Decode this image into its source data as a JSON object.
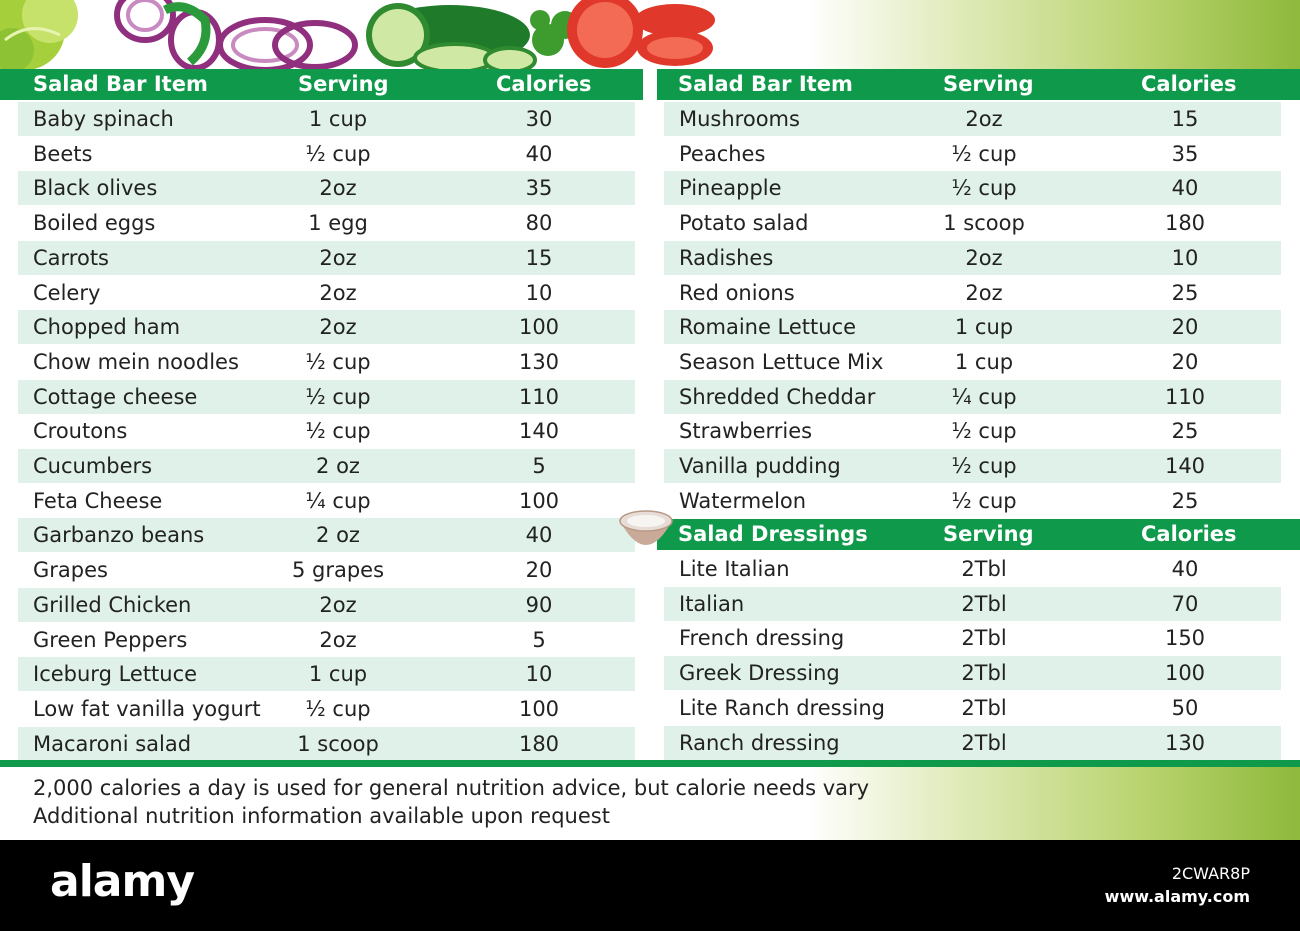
{
  "headers": {
    "item": "Salad Bar Item",
    "serving": "Serving",
    "calories": "Calories"
  },
  "dressing_headers": {
    "item": "Salad Dressings",
    "serving": "Serving",
    "calories": "Calories"
  },
  "left_items": [
    {
      "item": "Baby spinach",
      "serving": "1 cup",
      "calories": "30"
    },
    {
      "item": "Beets",
      "serving": "½ cup",
      "calories": "40"
    },
    {
      "item": "Black olives",
      "serving": "2oz",
      "calories": "35"
    },
    {
      "item": "Boiled eggs",
      "serving": "1 egg",
      "calories": "80"
    },
    {
      "item": "Carrots",
      "serving": "2oz",
      "calories": "15"
    },
    {
      "item": "Celery",
      "serving": "2oz",
      "calories": "10"
    },
    {
      "item": "Chopped ham",
      "serving": "2oz",
      "calories": "100"
    },
    {
      "item": "Chow mein noodles",
      "serving": "½ cup",
      "calories": "130"
    },
    {
      "item": "Cottage cheese",
      "serving": "½ cup",
      "calories": "110"
    },
    {
      "item": "Croutons",
      "serving": "½ cup",
      "calories": "140"
    },
    {
      "item": "Cucumbers",
      "serving": "2 oz",
      "calories": "5"
    },
    {
      "item": "Feta Cheese",
      "serving": "¼ cup",
      "calories": "100"
    },
    {
      "item": "Garbanzo beans",
      "serving": "2 oz",
      "calories": "40"
    },
    {
      "item": "Grapes",
      "serving": "5  grapes",
      "calories": "20"
    },
    {
      "item": "Grilled Chicken",
      "serving": "2oz",
      "calories": "90"
    },
    {
      "item": "Green Peppers",
      "serving": "2oz",
      "calories": "5"
    },
    {
      "item": "Iceburg Lettuce",
      "serving": "1 cup",
      "calories": "10"
    },
    {
      "item": "Low fat vanilla yogurt",
      "serving": "½ cup",
      "calories": "100"
    },
    {
      "item": "Macaroni salad",
      "serving": "1 scoop",
      "calories": "180"
    }
  ],
  "right_items": [
    {
      "item": "Mushrooms",
      "serving": "2oz",
      "calories": "15"
    },
    {
      "item": "Peaches",
      "serving": "½ cup",
      "calories": "35"
    },
    {
      "item": "Pineapple",
      "serving": "½ cup",
      "calories": "40"
    },
    {
      "item": "Potato salad",
      "serving": "1 scoop",
      "calories": "180"
    },
    {
      "item": "Radishes",
      "serving": "2oz",
      "calories": "10"
    },
    {
      "item": "Red onions",
      "serving": "2oz",
      "calories": "25"
    },
    {
      "item": "Romaine Lettuce",
      "serving": "1 cup",
      "calories": "20"
    },
    {
      "item": "Season Lettuce Mix",
      "serving": "1 cup",
      "calories": "20"
    },
    {
      "item": "Shredded Cheddar",
      "serving": "¼ cup",
      "calories": "110"
    },
    {
      "item": "Strawberries",
      "serving": "½ cup",
      "calories": "25"
    },
    {
      "item": "Vanilla pudding",
      "serving": "½ cup",
      "calories": "140"
    },
    {
      "item": "Watermelon",
      "serving": "½ cup",
      "calories": "25"
    }
  ],
  "dressings": [
    {
      "item": "Lite Italian",
      "serving": "2Tbl",
      "calories": "40"
    },
    {
      "item": "Italian",
      "serving": "2Tbl",
      "calories": "70"
    },
    {
      "item": "French dressing",
      "serving": "2Tbl",
      "calories": "150"
    },
    {
      "item": "Greek Dressing",
      "serving": "2Tbl",
      "calories": "100"
    },
    {
      "item": "Lite Ranch dressing",
      "serving": "2Tbl",
      "calories": "50"
    },
    {
      "item": "Ranch dressing",
      "serving": "2Tbl",
      "calories": "130"
    }
  ],
  "footer": {
    "line1": "2,000 calories a day is used for general nutrition advice, but calorie needs vary",
    "line2": "Additional nutrition information available upon request"
  },
  "watermark": {
    "logo": "alamy",
    "image_id": "2CWAR8P",
    "site": "www.alamy.com"
  },
  "colors": {
    "header_green": "#0e9a4a",
    "row_shade": "#dff1e8",
    "band_green": "#8eb93c"
  }
}
